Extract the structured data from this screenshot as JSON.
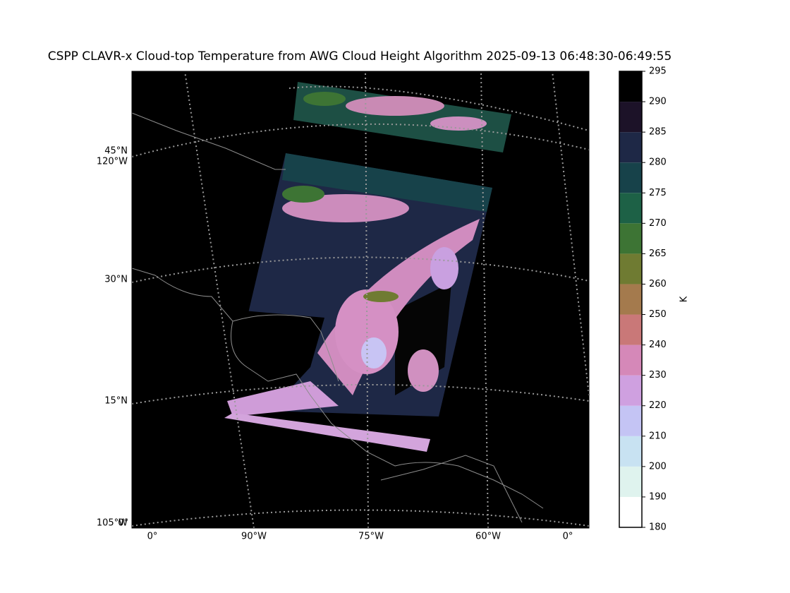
{
  "title": "CSPP CLAVR-x Cloud-top Temperature from AWG Cloud Height Algorithm 2025-09-13 06:48:30-06:49:55",
  "map": {
    "lat_labels": [
      "45°N",
      "30°N",
      "15°N"
    ],
    "lon_labels_left": [
      "120°W",
      "105°W",
      "0°"
    ],
    "lon_labels_bottom": [
      "0°",
      "90°W",
      "75°W",
      "60°W",
      "0°"
    ]
  },
  "colorbar": {
    "label": "K",
    "ticks": [
      180,
      190,
      200,
      210,
      220,
      230,
      240,
      250,
      260,
      265,
      270,
      275,
      280,
      285,
      290,
      295
    ],
    "colors": [
      "#ffffff",
      "#dff3ee",
      "#c8e2f2",
      "#c4c4f4",
      "#cfa0e0",
      "#d588b8",
      "#c97878",
      "#a47a4d",
      "#6f7b32",
      "#3d7434",
      "#1d6146",
      "#17424a",
      "#1e2846",
      "#1c1228",
      "#000000"
    ]
  }
}
